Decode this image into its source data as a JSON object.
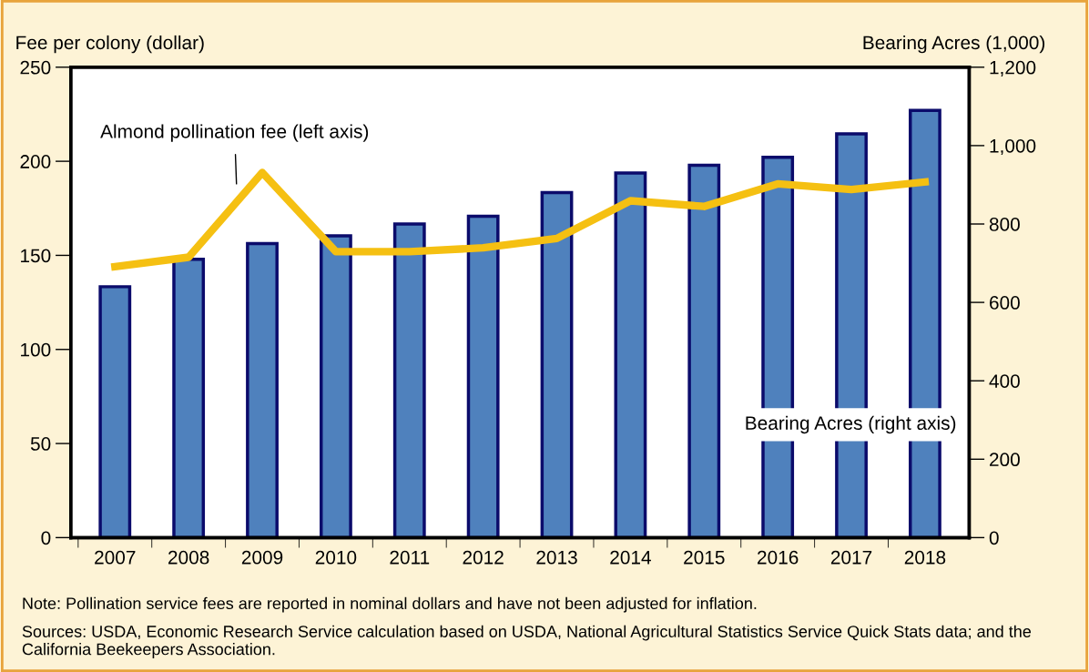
{
  "chart_data": {
    "type": "bar",
    "categories": [
      "2007",
      "2008",
      "2009",
      "2010",
      "2011",
      "2012",
      "2013",
      "2014",
      "2015",
      "2016",
      "2017",
      "2018"
    ],
    "ylabel": "Fee per colony (dollar)",
    "y2label": "Bearing Acres (1,000)",
    "series": [
      {
        "name": "Bearing Acres (right axis)",
        "axis": "y2",
        "color": "#4f81bd",
        "values": [
          640,
          710,
          750,
          770,
          800,
          820,
          880,
          930,
          950,
          970,
          1030,
          1090
        ]
      },
      {
        "name": "Almond pollination fee (left axis)",
        "type": "line",
        "color": "#f5c012",
        "values": [
          144,
          149,
          194,
          152,
          152,
          154,
          159,
          179,
          176,
          188,
          185,
          189
        ]
      }
    ],
    "ylim": [
      0,
      250
    ],
    "yticks": [
      0,
      50,
      100,
      150,
      200,
      250
    ],
    "y2lim": [
      0,
      1200
    ],
    "y2ticks": [
      0,
      200,
      400,
      600,
      800,
      {
        "value": 1000,
        "label": "1,000"
      },
      {
        "value": 1200,
        "label": "1,200"
      }
    ],
    "grid": false,
    "legend": false,
    "marker": "none",
    "line_style": "solid",
    "annotations": [
      "Note: Pollination service fees are reported in nominal dollars and have not been adjusted for inflation.",
      "Sources: USDA, Economic Research Service calculation based on USDA, National Agricultural Statistics Service Quick Stats data; and the California Beekeepers Association."
    ]
  }
}
